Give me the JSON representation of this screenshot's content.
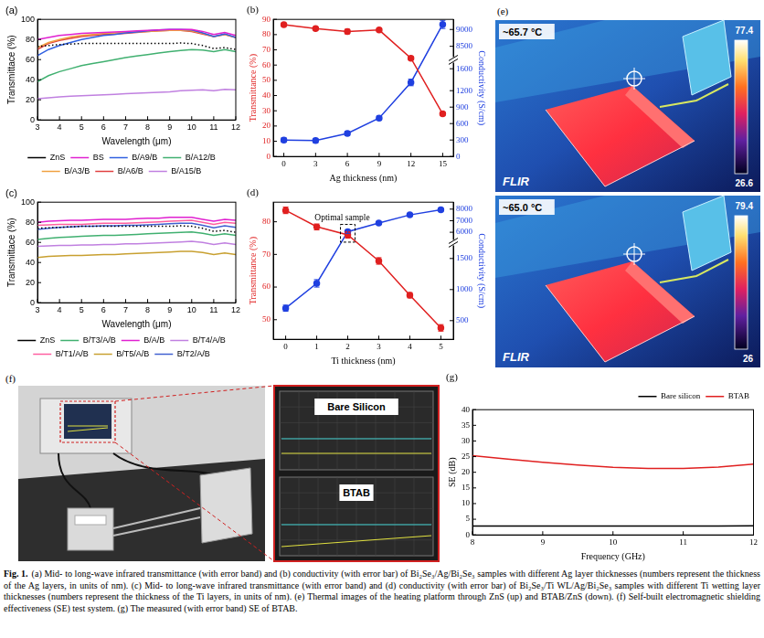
{
  "chart_data": [
    {
      "panel": "(a)",
      "type": "line",
      "x_label": "Wavelength (μm)",
      "y_label": "Transmittace (%)",
      "x": [
        3,
        3.5,
        4,
        4.5,
        5,
        5.5,
        6,
        6.5,
        7,
        7.5,
        8,
        8.5,
        9,
        9.5,
        10,
        10.5,
        11,
        11.5,
        12
      ],
      "xlim": [
        3,
        12
      ],
      "xticks": [
        3,
        4,
        5,
        6,
        7,
        8,
        9,
        10,
        11,
        12
      ],
      "ylim": [
        0,
        100
      ],
      "yticks": [
        0,
        20,
        40,
        60,
        80,
        100
      ],
      "grid": false,
      "legend": "bottom",
      "series": [
        {
          "name": "ZnS",
          "color": "#000000",
          "line_style": "dotted",
          "values": [
            73,
            74,
            75,
            75.5,
            76,
            76,
            76,
            76,
            76,
            76,
            76,
            76,
            76,
            76.5,
            76,
            74,
            71,
            72,
            70
          ]
        },
        {
          "name": "BS",
          "color": "#e020d0",
          "line_style": "solid",
          "values": [
            80,
            82,
            84,
            85,
            86,
            86.5,
            87,
            87.5,
            88,
            88.5,
            89,
            89.5,
            90,
            90,
            90,
            88,
            85,
            87,
            84
          ]
        },
        {
          "name": "B/A9/B",
          "color": "#3060e0",
          "line_style": "solid",
          "values": [
            64,
            70,
            74,
            77,
            80,
            82,
            84,
            85,
            86.5,
            87.5,
            88.5,
            89.5,
            90,
            90,
            89.5,
            86.5,
            83,
            85.5,
            82
          ]
        },
        {
          "name": "B/A12/B",
          "color": "#40b070",
          "line_style": "solid",
          "values": [
            38,
            44,
            48,
            51,
            54,
            56,
            58,
            60,
            62,
            63.5,
            65,
            66.5,
            68,
            69,
            70,
            69.5,
            68,
            70,
            68
          ]
        },
        {
          "name": "B/A3/B",
          "color": "#f0a040",
          "line_style": "solid",
          "values": [
            72,
            77,
            80,
            82.5,
            84,
            85,
            86,
            86.5,
            87,
            87.5,
            88,
            88.5,
            89,
            89,
            88.5,
            86,
            83,
            85,
            82
          ]
        },
        {
          "name": "B/A6/B",
          "color": "#e04040",
          "line_style": "solid",
          "values": [
            70,
            76,
            79,
            81,
            83,
            84,
            85,
            85.5,
            86,
            87,
            88,
            88.5,
            89,
            89,
            88,
            85.5,
            83,
            85,
            82
          ]
        },
        {
          "name": "B/A15/B",
          "color": "#c080e0",
          "line_style": "solid",
          "values": [
            21,
            22,
            23,
            23.5,
            24,
            24.5,
            25,
            25.5,
            26,
            26.5,
            27,
            27.5,
            28,
            29,
            29.5,
            30,
            29,
            30.5,
            30
          ]
        }
      ]
    },
    {
      "panel": "(b)",
      "type": "line",
      "x_label": "Ag thickness (nm)",
      "y_label": "Transmittance (%)",
      "y2_label": "Conductivity (S/cm)",
      "x": [
        0,
        3,
        6,
        9,
        12,
        15
      ],
      "xlim": [
        -1,
        16
      ],
      "xticks": [
        0,
        3,
        6,
        9,
        12,
        15
      ],
      "ylim": [
        0,
        90
      ],
      "yticks": [
        0,
        10,
        20,
        30,
        40,
        50,
        60,
        70,
        80,
        90
      ],
      "y2lim": [
        [
          0,
          1700
        ],
        [
          8200,
          9300
        ]
      ],
      "y2ticks": [
        0,
        300,
        600,
        900,
        1200,
        1600,
        8500,
        9000
      ],
      "grid": false,
      "series": [
        {
          "color": "#e02020",
          "axis": "y",
          "marker": "circle",
          "values": [
            86.5,
            84,
            82,
            83,
            64.5,
            28
          ],
          "errors": [
            1,
            1,
            1.5,
            1,
            1,
            1
          ]
        },
        {
          "color": "#2040e0",
          "axis": "y2",
          "marker": "circle",
          "values": [
            300,
            290,
            420,
            700,
            1350,
            9150
          ],
          "errors": [
            40,
            40,
            40,
            40,
            60,
            120
          ]
        }
      ]
    },
    {
      "panel": "(c)",
      "type": "line",
      "x_label": "Wavelength (μm)",
      "y_label": "Transmittace (%)",
      "x": [
        3,
        3.5,
        4,
        4.5,
        5,
        5.5,
        6,
        6.5,
        7,
        7.5,
        8,
        8.5,
        9,
        9.5,
        10,
        10.5,
        11,
        11.5,
        12
      ],
      "xlim": [
        3,
        12
      ],
      "xticks": [
        3,
        4,
        5,
        6,
        7,
        8,
        9,
        10,
        11,
        12
      ],
      "ylim": [
        0,
        100
      ],
      "yticks": [
        0,
        20,
        40,
        60,
        80,
        100
      ],
      "grid": false,
      "legend": "bottom",
      "series": [
        {
          "name": "ZnS",
          "color": "#000000",
          "line_style": "dotted",
          "values": [
            74,
            74.5,
            75,
            75.5,
            76,
            76,
            76,
            76,
            76,
            76,
            76,
            76,
            76,
            76.5,
            76,
            74,
            71,
            72,
            70
          ]
        },
        {
          "name": "B/T3/A/B",
          "color": "#40b070",
          "line_style": "solid",
          "values": [
            63,
            64,
            65,
            65.5,
            66,
            66.5,
            67,
            67,
            67.5,
            68,
            68.5,
            69,
            69.5,
            70,
            70.5,
            69,
            67,
            68.5,
            67
          ]
        },
        {
          "name": "B/A/B",
          "color": "#e020d0",
          "line_style": "solid",
          "values": [
            80,
            81,
            81.5,
            82,
            82,
            82.5,
            83,
            83,
            83,
            83.5,
            84,
            84,
            85,
            85,
            85,
            83,
            81,
            83,
            82
          ]
        },
        {
          "name": "B/T4/A/B",
          "color": "#c080e0",
          "line_style": "solid",
          "values": [
            56,
            56.5,
            57,
            57,
            57.5,
            57.5,
            58,
            58,
            58.5,
            58.5,
            59,
            59.5,
            60,
            60.5,
            61,
            60,
            58,
            59.5,
            58
          ]
        },
        {
          "name": "B/T1/A/B",
          "color": "#ff5fa0",
          "line_style": "solid",
          "values": [
            77,
            77.5,
            78,
            78,
            78,
            78.5,
            79,
            79,
            79,
            79.5,
            80,
            80.5,
            81,
            81.5,
            82,
            80,
            78,
            80,
            79
          ]
        },
        {
          "name": "B/T5/A/B",
          "color": "#c8a030",
          "line_style": "solid",
          "values": [
            45,
            46,
            46.5,
            47,
            47,
            47.5,
            48,
            48,
            48.5,
            49,
            49.5,
            50,
            50.5,
            51,
            51,
            50,
            48,
            49.5,
            48
          ]
        },
        {
          "name": "B/T2/A/B",
          "color": "#4060d0",
          "line_style": "solid",
          "values": [
            73,
            74,
            75,
            75.5,
            76,
            76,
            76.5,
            76.5,
            77,
            77,
            77.5,
            78,
            78.5,
            79,
            79,
            77,
            74.5,
            76.5,
            75
          ]
        }
      ]
    },
    {
      "panel": "(d)",
      "type": "line",
      "x_label": "Ti thickness (nm)",
      "y_label": "Transmittance (%)",
      "y2_label": "Conductivity (S/cm)",
      "x": [
        0,
        1,
        2,
        3,
        4,
        5
      ],
      "xlim": [
        -0.4,
        5.4
      ],
      "xticks": [
        0,
        1,
        2,
        3,
        4,
        5
      ],
      "ylim": [
        44,
        86
      ],
      "yticks": [
        50,
        60,
        70,
        80
      ],
      "y2lim": [
        [
          200,
          1700
        ],
        [
          5400,
          8600
        ]
      ],
      "y2ticks": [
        500,
        1000,
        1500,
        6000,
        7000,
        8000
      ],
      "grid": false,
      "annotations": [
        {
          "text": "Optimal sample",
          "x": 2
        }
      ],
      "series": [
        {
          "color": "#e02020",
          "axis": "y",
          "marker": "circle",
          "values": [
            83.5,
            78.5,
            76,
            68,
            57.5,
            47.5
          ],
          "errors": [
            1,
            1,
            1,
            1,
            0.8,
            1
          ]
        },
        {
          "color": "#2040e0",
          "axis": "y2",
          "marker": "circle",
          "values": [
            700,
            1100,
            6050,
            6800,
            7500,
            7950
          ],
          "errors": [
            50,
            60,
            150,
            100,
            100,
            100
          ]
        }
      ]
    },
    {
      "panel": "(g)",
      "type": "line",
      "x_label": "Frequency (GHz)",
      "y_label": "SE (dB)",
      "x": [
        8,
        8.5,
        9,
        9.5,
        10,
        10.5,
        11,
        11.5,
        12
      ],
      "xlim": [
        8,
        12
      ],
      "xticks": [
        8,
        9,
        10,
        11,
        12
      ],
      "ylim": [
        0,
        40
      ],
      "yticks": [
        0,
        5,
        10,
        15,
        20,
        25,
        30,
        35,
        40
      ],
      "grid": false,
      "legend": "top-right",
      "series": [
        {
          "name": "Bare silicon",
          "color": "#000000",
          "line_style": "solid",
          "values": [
            2.8,
            2.8,
            2.8,
            2.8,
            2.8,
            2.8,
            2.8,
            2.8,
            2.9
          ]
        },
        {
          "name": "BTAB",
          "color": "#e02020",
          "line_style": "solid",
          "values": [
            25.3,
            24.2,
            23.2,
            22.3,
            21.6,
            21.2,
            21.2,
            21.7,
            22.6
          ]
        }
      ]
    }
  ],
  "thermal_images": {
    "panel": "(e)",
    "images": [
      {
        "reading": "~65.7 °C",
        "scale_max": 77.4,
        "scale_min": 26.6,
        "logo": "FLIR"
      },
      {
        "reading": "~65.0 °C",
        "scale_max": 79.4,
        "scale_min": 26.0,
        "logo": "FLIR"
      }
    ]
  },
  "photo": {
    "panel": "(f)",
    "screens": [
      "Bare Silicon",
      "BTAB"
    ]
  },
  "caption": {
    "label": "Fig. 1.",
    "text": "(a) Mid- to long-wave infrared transmittance (with error band) and (b) conductivity (with error bar) of Bi₂Se₃/Ag/Bi₂Se₃ samples with different Ag layer thicknesses (numbers represent the thickness of the Ag layers, in units of nm). (c) Mid- to long-wave infrared transmittance (with error band) and (d) conductivity (with error bar) of Bi₂Se₃/Ti WL/Ag/Bi₂Se₃ samples with different Ti wetting layer thicknesses (numbers represent the thickness of the Ti layers, in units of nm). (e) Thermal images of the heating platform through ZnS (up) and BTAB/ZnS (down). (f) Self-built electromagnetic shielding effectiveness (SE) test system. (g) The measured (with error band) SE of BTAB."
  }
}
